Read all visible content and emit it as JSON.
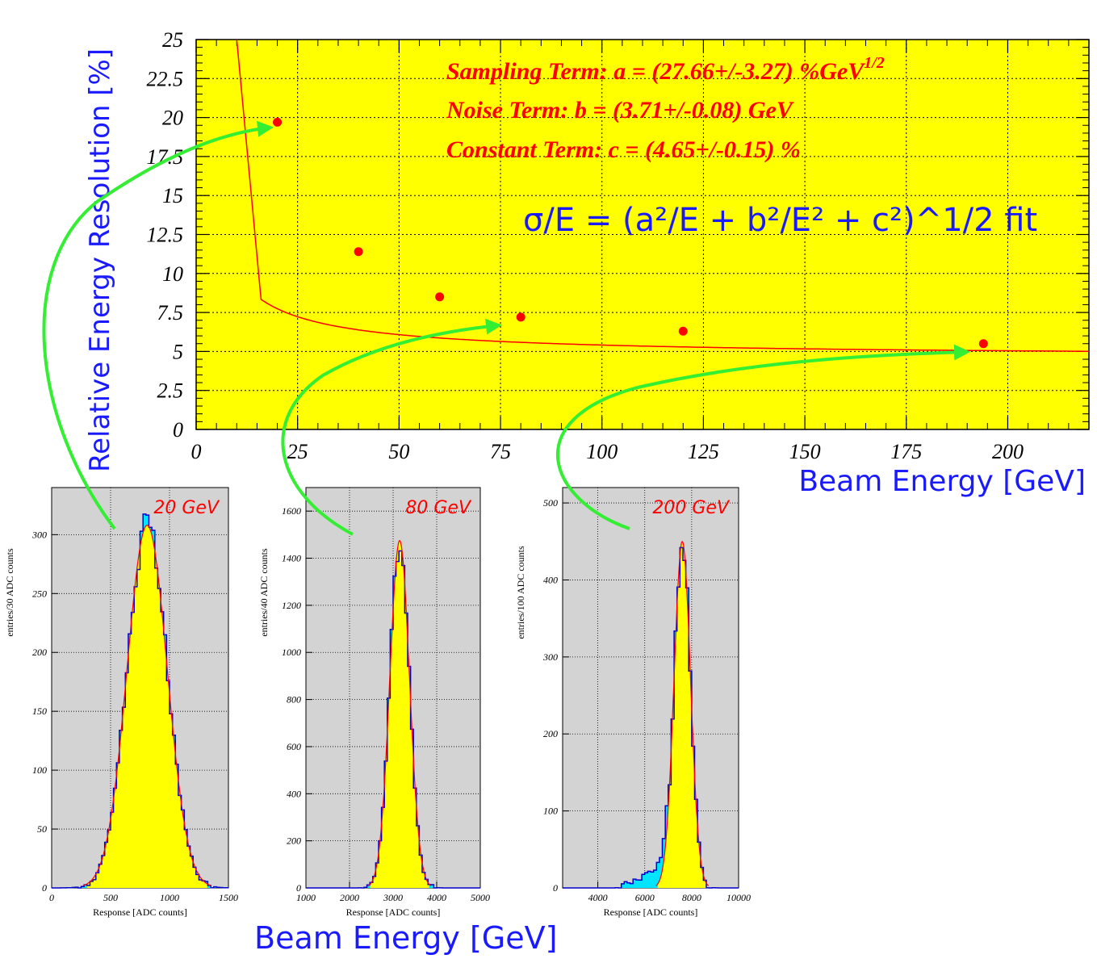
{
  "colors": {
    "plot_bg": "#ffff00",
    "hist_bg": "#d3d3d3",
    "fit_line": "#ff0000",
    "points": "#ff0000",
    "hist_line": "#0000cc",
    "hist_fill_yellow": "#ffff00",
    "hist_fill_cyan": "#00e5ff",
    "label_blue": "#1a1aff",
    "arrow": "#33ee33"
  },
  "chart_data": [
    {
      "id": "resolution",
      "type": "scatter",
      "title": "",
      "xlabel": "Beam Energy [GeV]",
      "ylabel": "Relative Energy Resolution [%]",
      "xlim": [
        0,
        220
      ],
      "ylim": [
        0,
        25
      ],
      "x_ticks": [
        "0",
        "25",
        "50",
        "75",
        "100",
        "125",
        "150",
        "175",
        "200"
      ],
      "y_ticks": [
        "0",
        "2.5",
        "5",
        "7.5",
        "10",
        "12.5",
        "15",
        "17.5",
        "20",
        "22.5",
        "25"
      ],
      "grid": true,
      "points": {
        "x": [
          20,
          40,
          60,
          80,
          120,
          194
        ],
        "y": [
          19.7,
          11.4,
          8.5,
          7.2,
          6.3,
          5.5
        ]
      },
      "fit": {
        "a": 27.66,
        "b": 3.71,
        "c": 4.65,
        "label": "σ/E = (a²/E + b²/E² + c²)^1/2 fit"
      },
      "annotations": {
        "sampling": "Sampling Term: a = (27.66+/-3.27) %GeV",
        "sampling_sup": "1/2",
        "noise": "Noise Term: b = (3.71+/-0.08) GeV",
        "constant": "Constant Term: c = (4.65+/-0.15) %"
      }
    },
    {
      "id": "h20",
      "type": "bar",
      "title": "20 GeV",
      "xlabel": "Response [ADC counts]",
      "ylabel": "entries/30 ADC counts",
      "xlim": [
        0,
        1500
      ],
      "ylim": [
        0,
        340
      ],
      "x_ticks": [
        "0",
        "500",
        "1000",
        "1500"
      ],
      "y_ticks": [
        "0",
        "50",
        "100",
        "150",
        "200",
        "250",
        "300"
      ],
      "grid": true,
      "fit": {
        "mean": 810,
        "sigma": 170,
        "amplitude": 308
      },
      "tail": null
    },
    {
      "id": "h80",
      "type": "bar",
      "title": "80 GeV",
      "xlabel": "Response [ADC counts]",
      "ylabel": "entries/40 ADC counts",
      "xlim": [
        1000,
        5000
      ],
      "ylim": [
        0,
        1700
      ],
      "x_ticks": [
        "1000",
        "2000",
        "3000",
        "4000",
        "5000"
      ],
      "y_ticks": [
        "0",
        "200",
        "400",
        "600",
        "800",
        "1000",
        "1200",
        "1400",
        "1600"
      ],
      "grid": true,
      "fit": {
        "mean": 3150,
        "sigma": 225,
        "amplitude": 1475
      },
      "tail": null
    },
    {
      "id": "h200",
      "type": "bar",
      "title": "200 GeV",
      "xlabel": "Response [ADC counts]",
      "ylabel": "entries/100 ADC counts",
      "xlim": [
        2500,
        10000
      ],
      "ylim": [
        0,
        520
      ],
      "x_ticks": [
        "4000",
        "6000",
        "8000",
        "10000"
      ],
      "y_ticks": [
        "0",
        "100",
        "200",
        "300",
        "400",
        "500"
      ],
      "grid": true,
      "fit": {
        "mean": 7600,
        "sigma": 350,
        "amplitude": 450
      },
      "tail": {
        "start": 4800,
        "end": 7000,
        "level": 30
      }
    }
  ],
  "bottom_label": "Beam Energy [GeV]"
}
